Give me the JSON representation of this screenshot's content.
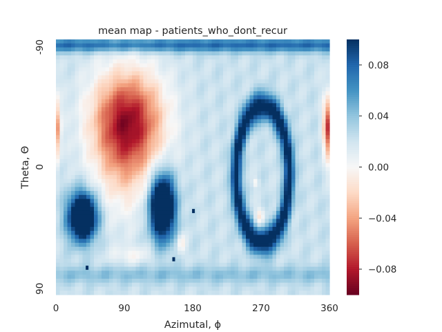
{
  "chart_data": {
    "type": "heatmap",
    "title": "mean map - patients_who_dont_recur",
    "xlabel": "Azimutal, ϕ",
    "ylabel": "Theta, Θ",
    "x_range": [
      0,
      360
    ],
    "y_range": [
      -90,
      90
    ],
    "x_ticks": [
      {
        "value": 0,
        "label": "0"
      },
      {
        "value": 90,
        "label": "90"
      },
      {
        "value": 180,
        "label": "180"
      },
      {
        "value": 270,
        "label": "270"
      },
      {
        "value": 360,
        "label": "360"
      }
    ],
    "y_ticks": [
      {
        "value": -90,
        "label": "-90"
      },
      {
        "value": 0,
        "label": "0"
      },
      {
        "value": 90,
        "label": "90"
      }
    ],
    "colormap": "RdBu",
    "colorbar": {
      "vmin": -0.1,
      "vmax": 0.1,
      "ticks": [
        {
          "value": 0.08,
          "label": "0.08"
        },
        {
          "value": 0.04,
          "label": "0.04"
        },
        {
          "value": 0.0,
          "label": "0.00"
        },
        {
          "value": -0.04,
          "label": "−0.04"
        },
        {
          "value": -0.08,
          "label": "−0.08"
        }
      ]
    },
    "features": [
      {
        "kind": "blob",
        "phi": 95,
        "theta": -35,
        "sphi": 48,
        "stheta": 34,
        "value": -0.09
      },
      {
        "kind": "blob",
        "phi": 90,
        "theta": -5,
        "sphi": 40,
        "stheta": 40,
        "value": -0.04
      },
      {
        "kind": "blob",
        "phi": 0,
        "theta": -25,
        "sphi": 6,
        "stheta": 22,
        "value": -0.05
      },
      {
        "kind": "blob",
        "phi": 357,
        "theta": -30,
        "sphi": 6,
        "stheta": 20,
        "value": -0.05
      },
      {
        "kind": "blob",
        "phi": 35,
        "theta": 35,
        "sphi": 18,
        "stheta": 16,
        "value": 0.16
      },
      {
        "kind": "blob",
        "phi": 140,
        "theta": 28,
        "sphi": 16,
        "stheta": 22,
        "value": 0.16
      },
      {
        "kind": "ring",
        "phi": 272,
        "theta": 5,
        "rphi": 35,
        "rtheta": 48,
        "width": 7,
        "value": 0.09
      },
      {
        "kind": "blob",
        "phi": 268,
        "theta": 35,
        "sphi": 6,
        "stheta": 6,
        "value": -0.035
      },
      {
        "kind": "blob",
        "phi": 263,
        "theta": 11,
        "sphi": 4,
        "stheta": 3,
        "value": -0.025
      },
      {
        "kind": "blob",
        "phi": 100,
        "theta": 62,
        "sphi": 28,
        "stheta": 6,
        "value": -0.02
      },
      {
        "kind": "blob",
        "phi": 165,
        "theta": 54,
        "sphi": 6,
        "stheta": 7,
        "value": -0.03
      },
      {
        "kind": "band",
        "theta": -86,
        "stheta": 5,
        "value": 0.055
      },
      {
        "kind": "band",
        "theta": 76,
        "stheta": 6,
        "value": 0.02
      },
      {
        "kind": "dot",
        "phi": 181,
        "theta": 31,
        "value": 0.12
      },
      {
        "kind": "dot",
        "phi": 41,
        "theta": 71,
        "value": 0.12
      },
      {
        "kind": "dot",
        "phi": 155,
        "theta": 65,
        "value": 0.12
      }
    ]
  }
}
